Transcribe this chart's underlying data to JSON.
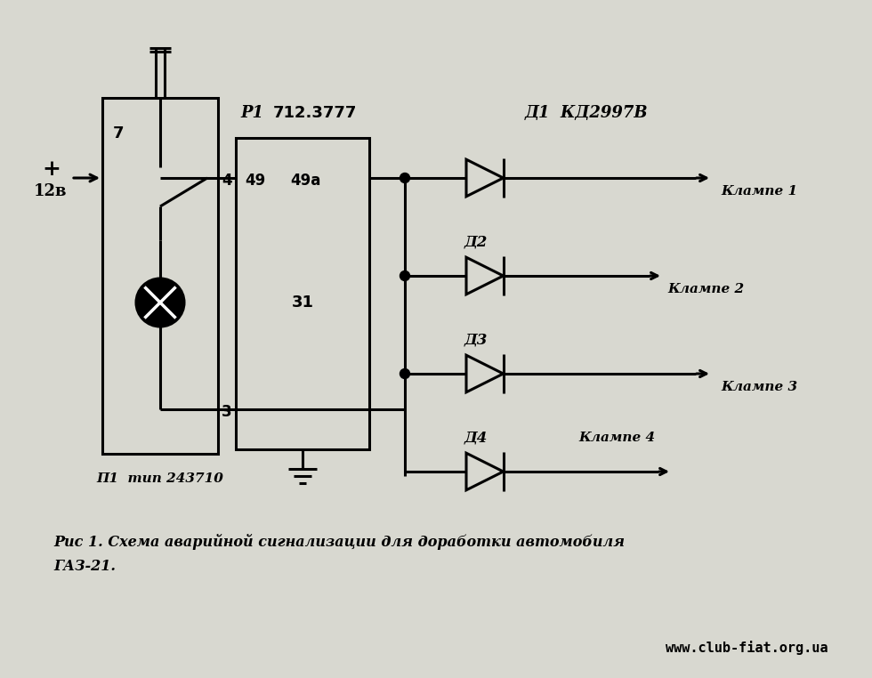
{
  "bg_color": "#d8d8d0",
  "line_color": "#000000",
  "lw": 2.2,
  "d1_label": "Д1  КД2997В",
  "d2_label": "Д2",
  "d3_label": "Д3",
  "d4_label": "Д4",
  "lamp1": "Клампе 1",
  "lamp2": "Клампе 2",
  "lamp3": "Клампе 3",
  "lamp4": "Клампе 4",
  "p1_label": "P1",
  "p1_model": "712.3777",
  "switch_label": "П1  тип 243710",
  "relay_label_49": "49",
  "relay_label_49a": "49a",
  "relay_label_31": "31",
  "caption": "Рис 1. Схема аварийной сигнализации для доработки автомобиля",
  "caption2": "ГАЗ-21.",
  "website": "www.club-fiat.org.ua",
  "voltage_label": "12в",
  "plus_label": "+",
  "label7": "7",
  "label4": "4",
  "label3": "3"
}
